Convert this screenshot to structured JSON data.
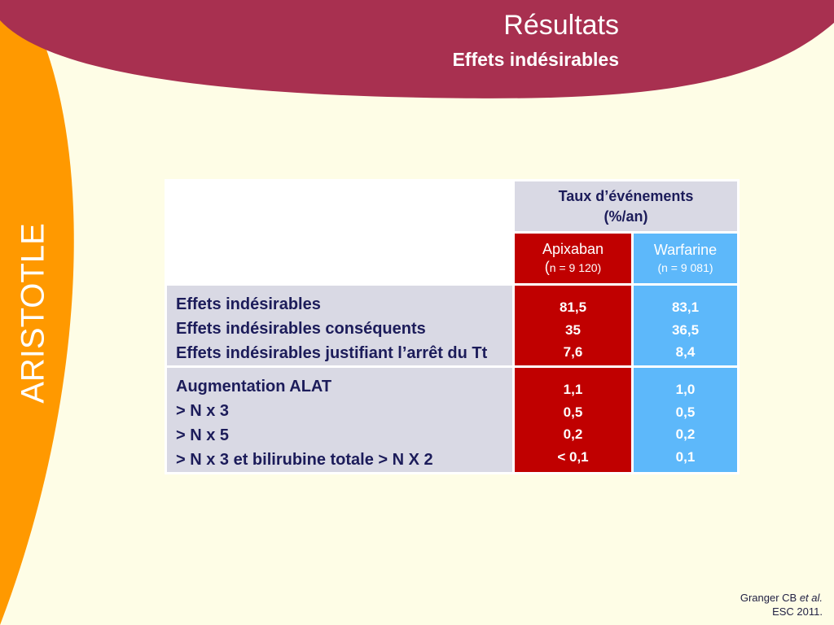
{
  "header": {
    "title": "Résultats",
    "subtitle": "Effets indésirables"
  },
  "side_label": "ARISTOTLE",
  "colors": {
    "background": "#fefde6",
    "header_band": "#a83050",
    "side_band": "#ff9900",
    "apixaban": "#c00000",
    "warfarine": "#5db8fa",
    "label_cells": "#d9d9e4"
  },
  "table": {
    "rate_header_line1": "Taux d’événements",
    "rate_header_line2": "(%/an)",
    "apixaban_name": "Apixaban",
    "apixaban_paren": "(",
    "apixaban_n": "n = 9 120)",
    "warfarine_name": "Warfarine",
    "warfarine_n": "(n = 9 081)",
    "rows": [
      {
        "labels": [
          "Effets indésirables",
          "Effets indésirables conséquents",
          "Effets indésirables justifiant l’arrêt du Tt"
        ],
        "apixaban": [
          "81,5",
          "35",
          "7,6"
        ],
        "warfarine": [
          "83,1",
          "36,5",
          "8,4"
        ]
      },
      {
        "labels": [
          "Augmentation ALAT",
          "> N x 3",
          "> N x 5",
          "> N x 3 et bilirubine totale > N X 2"
        ],
        "apixaban": [
          "1,1",
          "0,5",
          "0,2",
          "< 0,1"
        ],
        "warfarine": [
          "1,0",
          "0,5",
          "0,2",
          "0,1"
        ]
      }
    ]
  },
  "citation": {
    "author": "Granger CB ",
    "etal": "et al.",
    "line2": "ESC 2011."
  }
}
